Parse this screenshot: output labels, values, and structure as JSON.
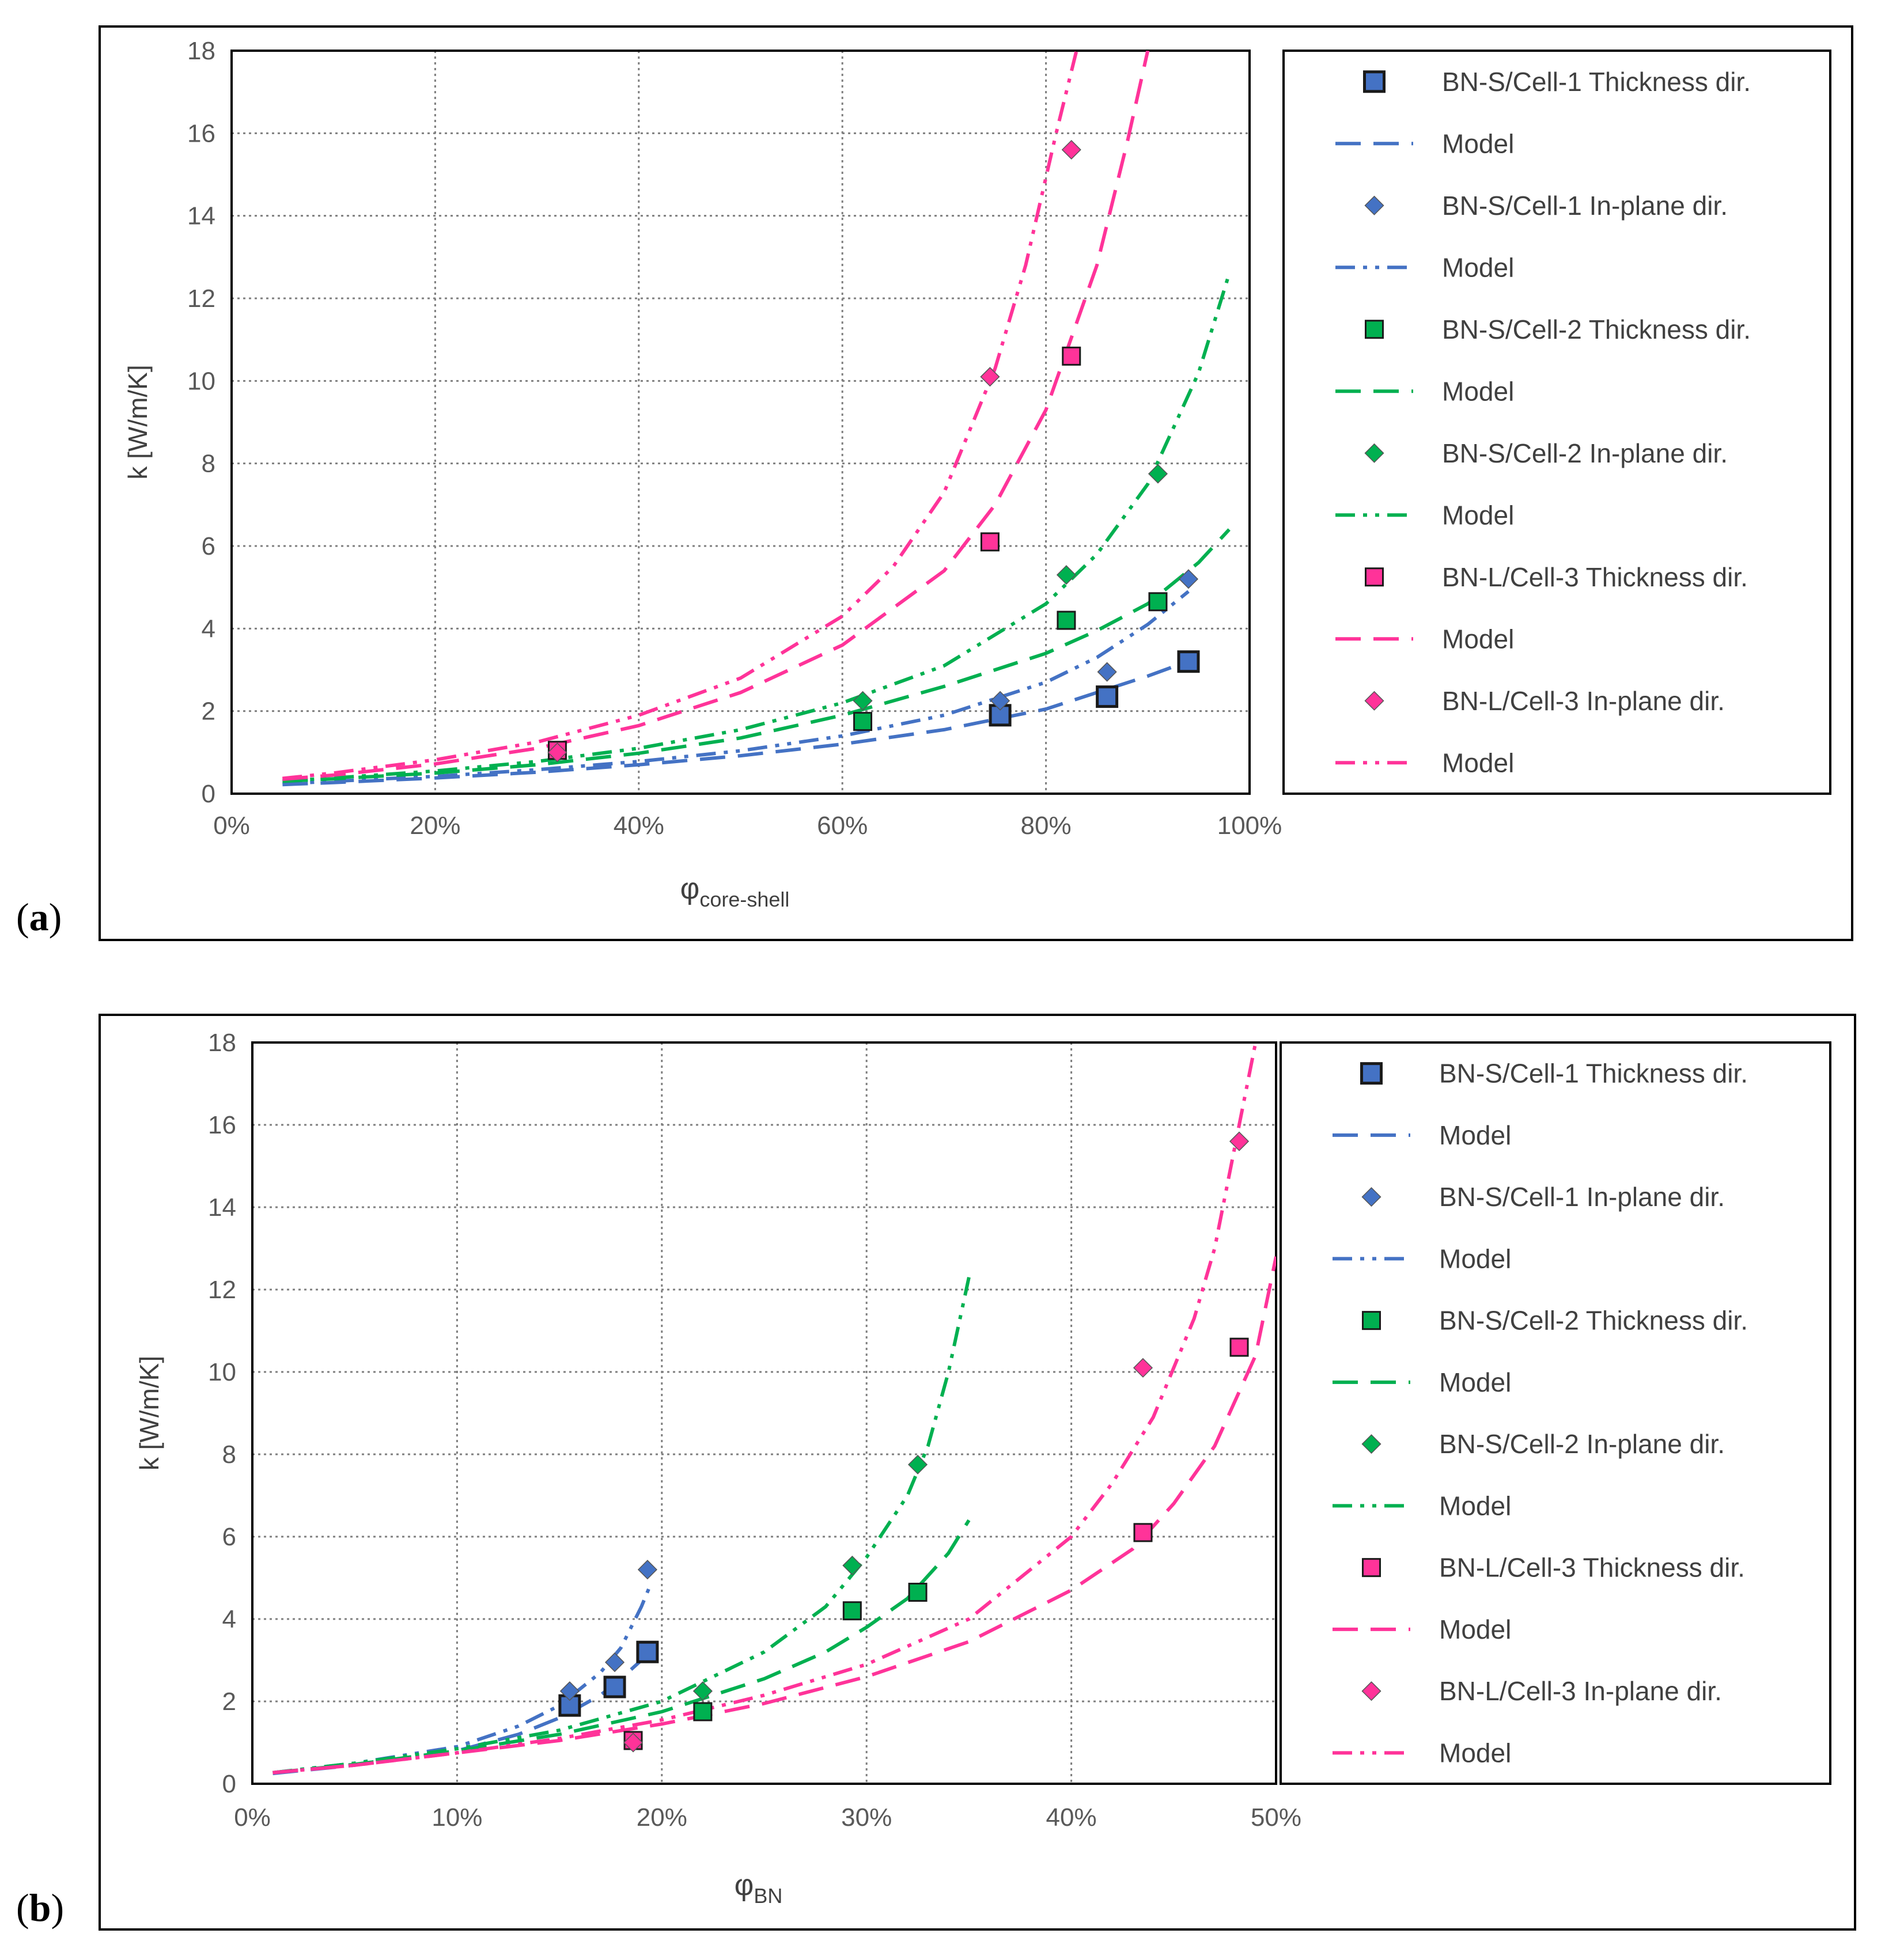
{
  "chart_data": [
    {
      "type": "scatter",
      "panel_label": "(a)",
      "xlabel_main": "φ",
      "xlabel_sub": "core-shell",
      "ylabel": "k [W/m/K]",
      "xlim": [
        0,
        1.0
      ],
      "ylim": [
        0,
        18
      ],
      "x_ticks": [
        0,
        0.2,
        0.4,
        0.6,
        0.8,
        1.0
      ],
      "x_tick_labels": [
        "0%",
        "20%",
        "40%",
        "60%",
        "80%",
        "100%"
      ],
      "y_ticks": [
        0,
        2,
        4,
        6,
        8,
        10,
        12,
        14,
        16,
        18
      ],
      "grid": true,
      "legend_position": "right",
      "series": [
        {
          "name": "BN-S/Cell-1 Thickness dir.",
          "kind": "marker",
          "marker": "square",
          "size": "large",
          "color": "#4472C4",
          "x": [
            0.755,
            0.86,
            0.94
          ],
          "y": [
            1.9,
            2.35,
            3.2
          ]
        },
        {
          "name": "Model",
          "kind": "line",
          "dash": "long",
          "color": "#4472C4",
          "x": [
            0.05,
            0.1,
            0.2,
            0.3,
            0.4,
            0.5,
            0.6,
            0.7,
            0.8,
            0.85,
            0.9,
            0.95
          ],
          "y": [
            0.22,
            0.27,
            0.38,
            0.52,
            0.7,
            0.92,
            1.2,
            1.55,
            2.05,
            2.45,
            2.85,
            3.3
          ]
        },
        {
          "name": "BN-S/Cell-1 In-plane dir.",
          "kind": "marker",
          "marker": "diamond",
          "size": "small",
          "color": "#4472C4",
          "x": [
            0.755,
            0.86,
            0.94
          ],
          "y": [
            2.25,
            2.95,
            5.2
          ]
        },
        {
          "name": "Model",
          "kind": "line",
          "dash": "dashdotdot",
          "color": "#4472C4",
          "x": [
            0.05,
            0.1,
            0.2,
            0.3,
            0.4,
            0.5,
            0.6,
            0.7,
            0.8,
            0.85,
            0.9,
            0.94
          ],
          "y": [
            0.24,
            0.3,
            0.42,
            0.58,
            0.78,
            1.04,
            1.4,
            1.9,
            2.7,
            3.3,
            4.1,
            4.9
          ]
        },
        {
          "name": "BN-S/Cell-2 Thickness dir.",
          "kind": "marker",
          "marker": "square",
          "size": "small",
          "color": "#00B050",
          "x": [
            0.62,
            0.82,
            0.91
          ],
          "y": [
            1.75,
            4.2,
            4.65
          ]
        },
        {
          "name": "Model",
          "kind": "line",
          "dash": "long",
          "color": "#00B050",
          "x": [
            0.05,
            0.1,
            0.2,
            0.3,
            0.4,
            0.5,
            0.6,
            0.7,
            0.8,
            0.85,
            0.9,
            0.95,
            0.98
          ],
          "y": [
            0.3,
            0.36,
            0.5,
            0.7,
            0.98,
            1.35,
            1.9,
            2.6,
            3.4,
            3.95,
            4.6,
            5.6,
            6.4
          ]
        },
        {
          "name": "BN-S/Cell-2 In-plane dir.",
          "kind": "marker",
          "marker": "diamond",
          "size": "small",
          "color": "#00B050",
          "x": [
            0.62,
            0.82,
            0.91
          ],
          "y": [
            2.25,
            5.3,
            7.75
          ]
        },
        {
          "name": "Model",
          "kind": "line",
          "dash": "dashdotdot",
          "color": "#00B050",
          "x": [
            0.05,
            0.1,
            0.2,
            0.3,
            0.4,
            0.5,
            0.6,
            0.7,
            0.8,
            0.85,
            0.9,
            0.95,
            0.98
          ],
          "y": [
            0.31,
            0.38,
            0.55,
            0.78,
            1.1,
            1.55,
            2.2,
            3.1,
            4.6,
            5.8,
            7.5,
            10.2,
            12.6
          ]
        },
        {
          "name": "BN-L/Cell-3 Thickness dir.",
          "kind": "marker",
          "marker": "square",
          "size": "small",
          "color": "#FF3399",
          "x": [
            0.32,
            0.745,
            0.825
          ],
          "y": [
            1.05,
            6.1,
            10.6
          ]
        },
        {
          "name": "Model",
          "kind": "line",
          "dash": "long",
          "color": "#FF3399",
          "x": [
            0.05,
            0.1,
            0.2,
            0.3,
            0.4,
            0.5,
            0.6,
            0.7,
            0.75,
            0.8,
            0.85,
            0.88,
            0.9
          ],
          "y": [
            0.35,
            0.45,
            0.72,
            1.1,
            1.65,
            2.45,
            3.6,
            5.4,
            7.0,
            9.3,
            12.8,
            15.8,
            18.0
          ]
        },
        {
          "name": "BN-L/Cell-3 In-plane dir.",
          "kind": "marker",
          "marker": "diamond",
          "size": "small",
          "color": "#FF3399",
          "x": [
            0.32,
            0.745,
            0.825
          ],
          "y": [
            1.0,
            10.1,
            15.6
          ]
        },
        {
          "name": "Model",
          "kind": "line",
          "dash": "dashdotdot",
          "color": "#FF3399",
          "x": [
            0.05,
            0.1,
            0.2,
            0.3,
            0.4,
            0.5,
            0.6,
            0.65,
            0.7,
            0.75,
            0.78,
            0.81,
            0.83
          ],
          "y": [
            0.37,
            0.5,
            0.82,
            1.25,
            1.9,
            2.8,
            4.3,
            5.5,
            7.3,
            10.3,
            12.8,
            16.0,
            18.0
          ]
        }
      ]
    },
    {
      "type": "scatter",
      "panel_label": "(b)",
      "xlabel_main": "φ",
      "xlabel_sub": "BN",
      "ylabel": "k [W/m/K]",
      "xlim": [
        0,
        0.5
      ],
      "ylim": [
        0,
        18
      ],
      "x_ticks": [
        0,
        0.1,
        0.2,
        0.3,
        0.4,
        0.5
      ],
      "x_tick_labels": [
        "0%",
        "10%",
        "20%",
        "30%",
        "40%",
        "50%"
      ],
      "y_ticks": [
        0,
        2,
        4,
        6,
        8,
        10,
        12,
        14,
        16,
        18
      ],
      "grid": true,
      "legend_position": "right",
      "series": [
        {
          "name": "BN-S/Cell-1 Thickness dir.",
          "kind": "marker",
          "marker": "square",
          "size": "large",
          "color": "#4472C4",
          "x": [
            0.155,
            0.177,
            0.193
          ],
          "y": [
            1.9,
            2.35,
            3.2
          ]
        },
        {
          "name": "Model",
          "kind": "line",
          "dash": "long",
          "color": "#4472C4",
          "x": [
            0.01,
            0.05,
            0.1,
            0.13,
            0.15,
            0.17,
            0.18,
            0.19
          ],
          "y": [
            0.25,
            0.45,
            0.8,
            1.2,
            1.6,
            2.15,
            2.55,
            3.0
          ]
        },
        {
          "name": "BN-S/Cell-1 In-plane dir.",
          "kind": "marker",
          "marker": "diamond",
          "size": "small",
          "color": "#4472C4",
          "x": [
            0.155,
            0.177,
            0.193
          ],
          "y": [
            2.25,
            2.95,
            5.2
          ]
        },
        {
          "name": "Model",
          "kind": "line",
          "dash": "dashdotdot",
          "color": "#4472C4",
          "x": [
            0.01,
            0.05,
            0.1,
            0.13,
            0.15,
            0.17,
            0.18,
            0.19,
            0.195
          ],
          "y": [
            0.27,
            0.5,
            0.9,
            1.4,
            1.9,
            2.7,
            3.3,
            4.3,
            4.9
          ]
        },
        {
          "name": "BN-S/Cell-2 Thickness dir.",
          "kind": "marker",
          "marker": "square",
          "size": "small",
          "color": "#00B050",
          "x": [
            0.22,
            0.293,
            0.325
          ],
          "y": [
            1.75,
            4.2,
            4.65
          ]
        },
        {
          "name": "Model",
          "kind": "line",
          "dash": "long",
          "color": "#00B050",
          "x": [
            0.01,
            0.05,
            0.1,
            0.15,
            0.2,
            0.25,
            0.28,
            0.3,
            0.32,
            0.34,
            0.35
          ],
          "y": [
            0.27,
            0.47,
            0.8,
            1.2,
            1.75,
            2.55,
            3.2,
            3.8,
            4.5,
            5.6,
            6.4
          ]
        },
        {
          "name": "BN-S/Cell-2 In-plane dir.",
          "kind": "marker",
          "marker": "diamond",
          "size": "small",
          "color": "#00B050",
          "x": [
            0.22,
            0.293,
            0.325
          ],
          "y": [
            2.25,
            5.3,
            7.75
          ]
        },
        {
          "name": "Model",
          "kind": "line",
          "dash": "dashdotdot",
          "color": "#00B050",
          "x": [
            0.01,
            0.05,
            0.1,
            0.15,
            0.2,
            0.25,
            0.28,
            0.3,
            0.32,
            0.33,
            0.34,
            0.35
          ],
          "y": [
            0.27,
            0.5,
            0.85,
            1.3,
            2.0,
            3.2,
            4.3,
            5.5,
            7.0,
            8.2,
            10.0,
            12.3
          ]
        },
        {
          "name": "BN-L/Cell-3 Thickness dir.",
          "kind": "marker",
          "marker": "square",
          "size": "small",
          "color": "#FF3399",
          "x": [
            0.186,
            0.435,
            0.482
          ],
          "y": [
            1.05,
            6.1,
            10.6
          ]
        },
        {
          "name": "Model",
          "kind": "line",
          "dash": "long",
          "color": "#FF3399",
          "x": [
            0.01,
            0.05,
            0.1,
            0.15,
            0.2,
            0.25,
            0.3,
            0.35,
            0.4,
            0.43,
            0.45,
            0.47,
            0.49,
            0.5
          ],
          "y": [
            0.27,
            0.45,
            0.75,
            1.05,
            1.45,
            1.95,
            2.6,
            3.45,
            4.7,
            5.7,
            6.8,
            8.2,
            10.4,
            12.8
          ]
        },
        {
          "name": "BN-L/Cell-3 In-plane dir.",
          "kind": "marker",
          "marker": "diamond",
          "size": "small",
          "color": "#FF3399",
          "x": [
            0.186,
            0.435,
            0.482
          ],
          "y": [
            1.0,
            10.1,
            15.6
          ]
        },
        {
          "name": "Model",
          "kind": "line",
          "dash": "dashdotdot",
          "color": "#FF3399",
          "x": [
            0.01,
            0.05,
            0.1,
            0.15,
            0.2,
            0.25,
            0.3,
            0.35,
            0.4,
            0.42,
            0.44,
            0.46,
            0.47,
            0.48,
            0.49
          ],
          "y": [
            0.27,
            0.45,
            0.75,
            1.1,
            1.55,
            2.15,
            2.9,
            4.0,
            6.0,
            7.3,
            8.9,
            11.3,
            13.0,
            15.5,
            18.0
          ]
        }
      ]
    }
  ]
}
